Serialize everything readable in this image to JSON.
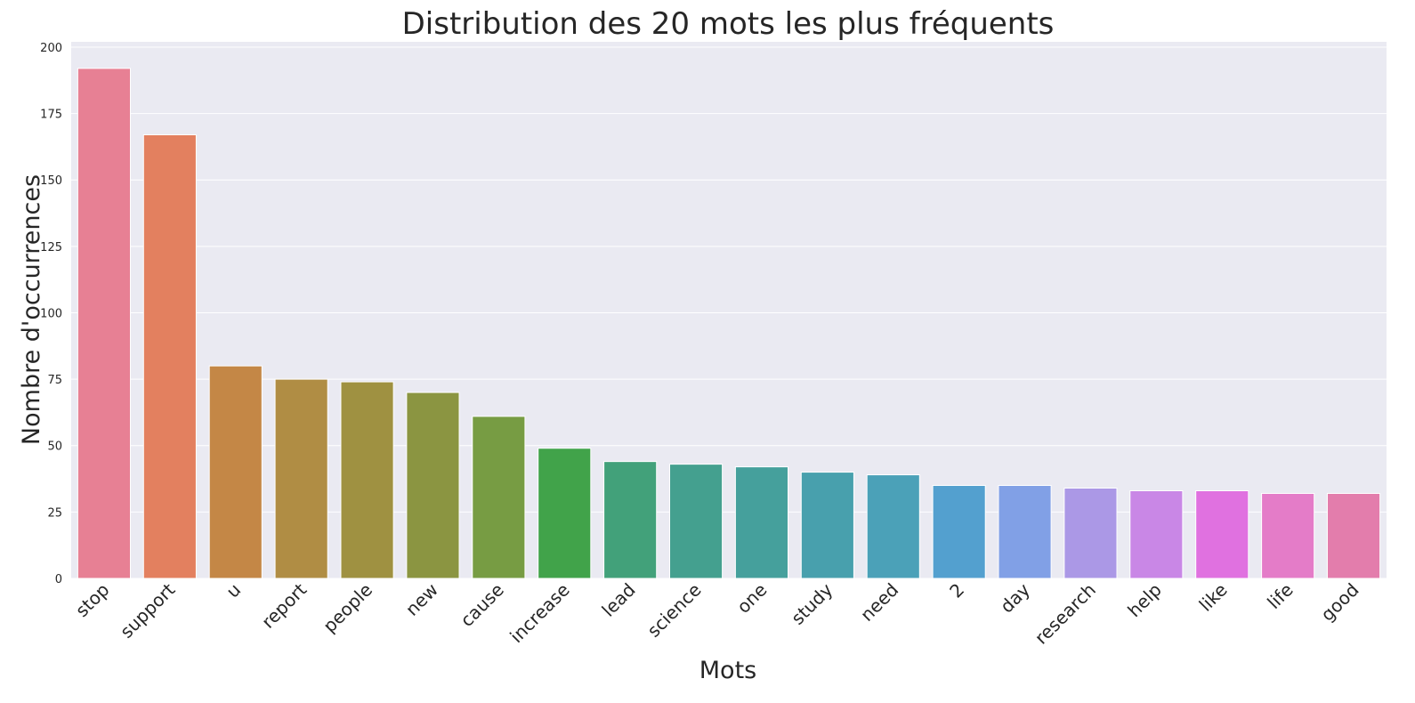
{
  "chart_data": {
    "type": "bar",
    "title": "Distribution des 20 mots les plus fréquents",
    "xlabel": "Mots",
    "ylabel": "Nombre d'occurrences",
    "categories": [
      "stop",
      "support",
      "u",
      "report",
      "people",
      "new",
      "cause",
      "increase",
      "lead",
      "science",
      "one",
      "study",
      "need",
      "2",
      "day",
      "research",
      "help",
      "like",
      "life",
      "good"
    ],
    "values": [
      192,
      167,
      80,
      75,
      74,
      70,
      61,
      49,
      44,
      43,
      42,
      40,
      39,
      35,
      35,
      34,
      33,
      33,
      32,
      32
    ],
    "colors": [
      "#e78094",
      "#e3805f",
      "#c48746",
      "#b08d44",
      "#9f9141",
      "#8b9541",
      "#779c43",
      "#41a34a",
      "#42a17a",
      "#44a08f",
      "#45a09c",
      "#48a0ad",
      "#4ba1b8",
      "#53a0cf",
      "#81a0e6",
      "#ab98e6",
      "#c987e6",
      "#e071e0",
      "#e47cc8",
      "#e37dac"
    ],
    "ylim": [
      0,
      200
    ],
    "yticks": [
      0,
      25,
      50,
      75,
      100,
      125,
      150,
      175,
      200
    ],
    "grid": true,
    "background": "#eaeaf2"
  }
}
